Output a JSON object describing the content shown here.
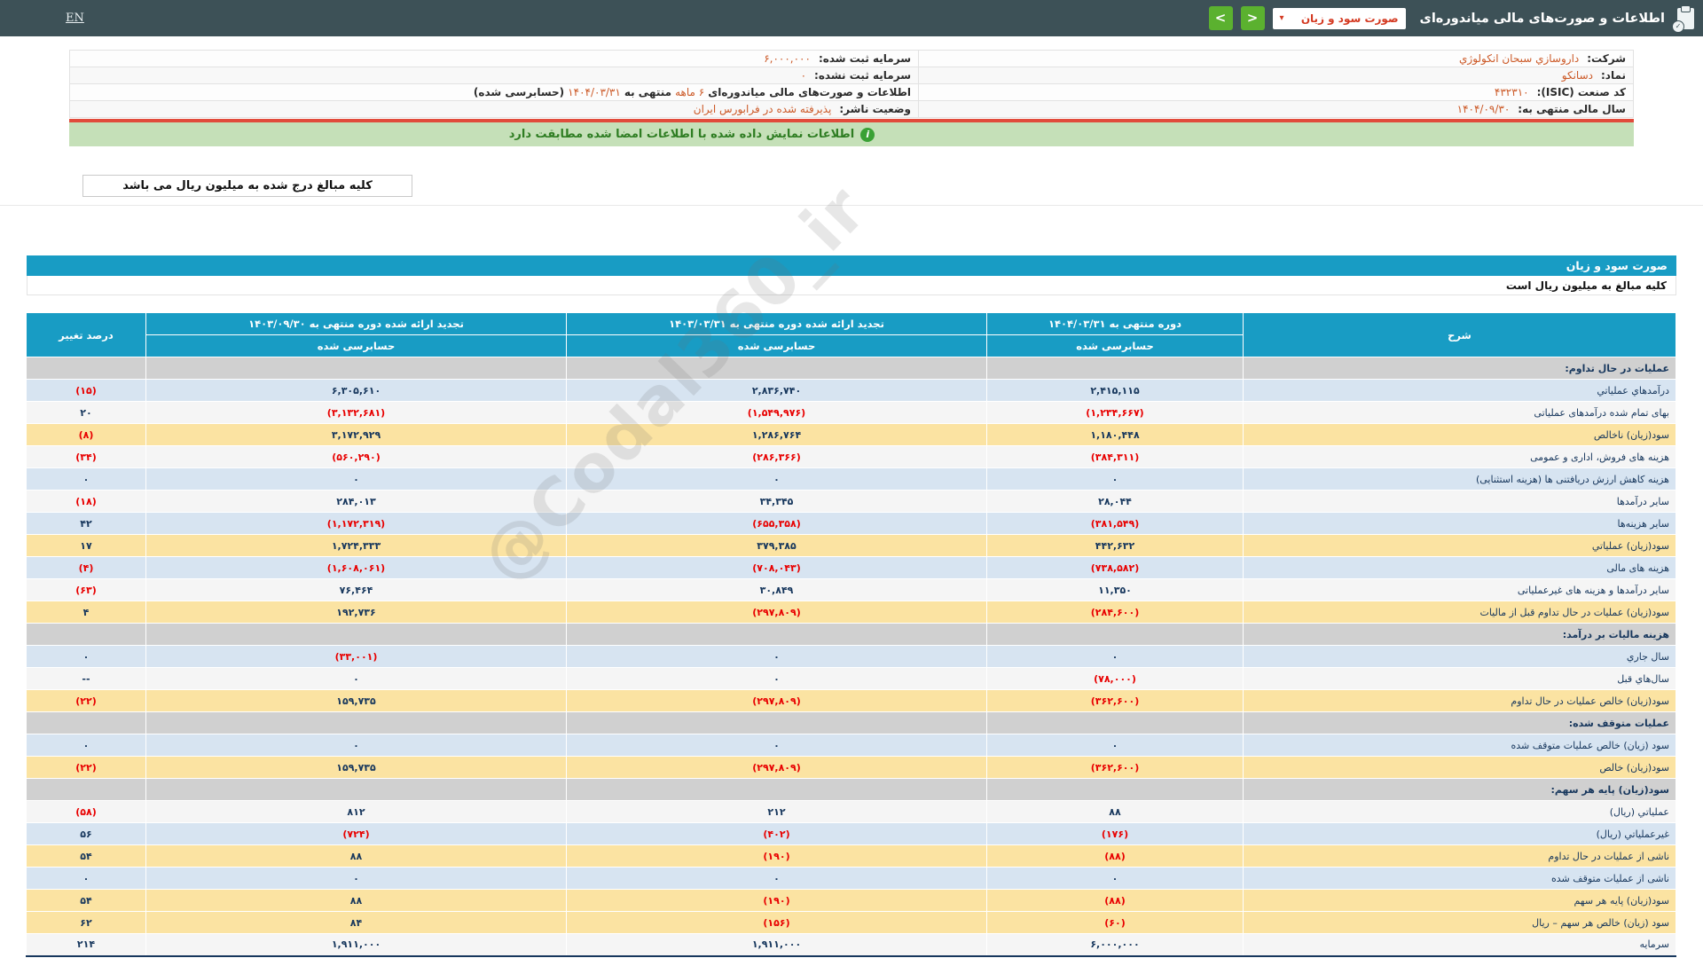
{
  "topbar": {
    "title": "اطلاعات و صورت‌های مالی میاندوره‌ای",
    "dropdown_value": "صورت سود و زیان",
    "lang_link": "EN",
    "icons": {
      "dropdown_caret": "▾",
      "next": ">",
      "prev": "<"
    }
  },
  "info": {
    "company_label": "شرکت:",
    "company_value": "داروسازي سبحان انکولوژي",
    "symbol_label": "نماد:",
    "symbol_value": "دسانکو",
    "isic_label": "کد صنعت (ISIC):",
    "isic_value": "۴۳۲۳۱۰",
    "fiscal_label": "سال مالی منتهی به:",
    "fiscal_value": "۱۴۰۴/۰۹/۳۰",
    "registered_capital_label": "سرمایه ثبت شده:",
    "registered_capital_value": "۶,۰۰۰,۰۰۰",
    "unregistered_capital_label": "سرمایه ثبت نشده:",
    "unregistered_capital_value": "۰",
    "period_prefix": "اطلاعات و صورت‌های مالی میاندوره‌ای",
    "period_months": "۶ ماهه",
    "period_mid": "منتهی به",
    "period_date": "۱۴۰۴/۰۳/۳۱",
    "period_suffix": "(حسابرسی شده)",
    "status_label": "وضعیت ناشر:",
    "status_value": "پذیرفته شده در فرابورس ایران"
  },
  "banner": {
    "text": "اطلاعات نمایش داده شده با اطلاعات امضا شده مطابقت دارد"
  },
  "amounts_note": "کلیه مبالغ درج شده به میلیون ریال می باشد",
  "statement": {
    "title": "صورت سود و زیان",
    "unit_note": "کلیه مبالغ به میلیون ریال است"
  },
  "table": {
    "headers": {
      "description": "شرح",
      "col1": "دوره منتهی به ۱۴۰۴/۰۳/۳۱",
      "col2": "تجدید ارائه شده دوره منتهی به ۱۴۰۳/۰۳/۳۱",
      "col3": "تجدید ارائه شده دوره منتهی به ۱۴۰۳/۰۹/۳۰",
      "pct": "درصد تغییر",
      "audited": "حسابرسی شده"
    },
    "rows": [
      {
        "label": "عملیات در حال تداوم:",
        "bg": "section"
      },
      {
        "label": "درآمدهاي عملیاتي",
        "bg": "blue",
        "v1": "۲,۴۱۵,۱۱۵",
        "v2": "۲,۸۳۶,۷۴۰",
        "v3": "۶,۳۰۵,۶۱۰",
        "pct": "(۱۵)"
      },
      {
        "label": "بهای تمام شده درآمدهای عملیاتی",
        "bg": "white",
        "v1": "(۱,۲۳۴,۶۶۷)",
        "v2": "(۱,۵۴۹,۹۷۶)",
        "v3": "(۳,۱۳۲,۶۸۱)",
        "pct": "۲۰"
      },
      {
        "label": "سود(زیان) ناخالص",
        "bg": "yellow",
        "v1": "۱,۱۸۰,۴۴۸",
        "v2": "۱,۲۸۶,۷۶۴",
        "v3": "۳,۱۷۲,۹۲۹",
        "pct": "(۸)"
      },
      {
        "label": "هزینه های فروش، اداری و عمومی",
        "bg": "white",
        "v1": "(۳۸۴,۳۱۱)",
        "v2": "(۲۸۶,۳۶۶)",
        "v3": "(۵۶۰,۲۹۰)",
        "pct": "(۳۴)"
      },
      {
        "label": "هزینه کاهش ارزش دریافتنی ها (هزینه استثنایی)",
        "bg": "blue",
        "v1": "۰",
        "v2": "۰",
        "v3": "۰",
        "pct": "۰"
      },
      {
        "label": "سایر درآمدها",
        "bg": "white",
        "v1": "۲۸,۰۴۴",
        "v2": "۳۴,۳۴۵",
        "v3": "۲۸۴,۰۱۳",
        "pct": "(۱۸)"
      },
      {
        "label": "سایر هزینه‌ها",
        "bg": "blue",
        "v1": "(۳۸۱,۵۴۹)",
        "v2": "(۶۵۵,۳۵۸)",
        "v3": "(۱,۱۷۲,۳۱۹)",
        "pct": "۴۲"
      },
      {
        "label": "سود(زیان) عملیاتي",
        "bg": "yellow",
        "v1": "۴۴۲,۶۳۲",
        "v2": "۳۷۹,۳۸۵",
        "v3": "۱,۷۲۴,۳۳۳",
        "pct": "۱۷"
      },
      {
        "label": "هزینه های مالی",
        "bg": "blue",
        "v1": "(۷۳۸,۵۸۲)",
        "v2": "(۷۰۸,۰۴۳)",
        "v3": "(۱,۶۰۸,۰۶۱)",
        "pct": "(۴)"
      },
      {
        "label": "سایر درآمدها و هزینه های غیرعملیاتی",
        "bg": "white",
        "v1": "۱۱,۳۵۰",
        "v2": "۳۰,۸۴۹",
        "v3": "۷۶,۴۶۴",
        "pct": "(۶۳)"
      },
      {
        "label": "سود(زیان) عملیات در حال تداوم قبل از مالیات",
        "bg": "yellow",
        "v1": "(۲۸۴,۶۰۰)",
        "v2": "(۲۹۷,۸۰۹)",
        "v3": "۱۹۲,۷۳۶",
        "pct": "۴"
      },
      {
        "label": "هزینه مالیات بر درآمد:",
        "bg": "section"
      },
      {
        "label": "سال جاري",
        "bg": "blue",
        "v1": "۰",
        "v2": "۰",
        "v3": "(۳۳,۰۰۱)",
        "pct": "۰"
      },
      {
        "label": "سال‌هاي قبل",
        "bg": "white",
        "v1": "(۷۸,۰۰۰)",
        "v2": "۰",
        "v3": "۰",
        "pct": "--"
      },
      {
        "label": "سود(زیان) خالص عملیات در حال تداوم",
        "bg": "yellow",
        "v1": "(۳۶۲,۶۰۰)",
        "v2": "(۲۹۷,۸۰۹)",
        "v3": "۱۵۹,۷۳۵",
        "pct": "(۲۲)"
      },
      {
        "label": "عملیات متوقف شده:",
        "bg": "section"
      },
      {
        "label": "سود (زیان) خالص عملیات متوقف شده",
        "bg": "blue",
        "v1": "۰",
        "v2": "۰",
        "v3": "۰",
        "pct": "۰"
      },
      {
        "label": "سود(زیان) خالص",
        "bg": "yellow",
        "v1": "(۳۶۲,۶۰۰)",
        "v2": "(۲۹۷,۸۰۹)",
        "v3": "۱۵۹,۷۳۵",
        "pct": "(۲۲)"
      },
      {
        "label": "سود(زیان) پایه هر سهم:",
        "bg": "section"
      },
      {
        "label": "عملیاتي (ریال)",
        "bg": "white",
        "v1": "۸۸",
        "v2": "۲۱۲",
        "v3": "۸۱۲",
        "pct": "(۵۸)"
      },
      {
        "label": "غیرعملیاتي (ریال)",
        "bg": "blue",
        "v1": "(۱۷۶)",
        "v2": "(۴۰۲)",
        "v3": "(۷۲۴)",
        "pct": "۵۶"
      },
      {
        "label": "ناشی از عملیات در حال تداوم",
        "bg": "yellow",
        "v1": "(۸۸)",
        "v2": "(۱۹۰)",
        "v3": "۸۸",
        "pct": "۵۴"
      },
      {
        "label": "ناشی از عملیات متوقف شده",
        "bg": "blue",
        "v1": "۰",
        "v2": "۰",
        "v3": "۰",
        "pct": "۰"
      },
      {
        "label": "سود(زیان) پایه هر سهم",
        "bg": "yellow",
        "v1": "(۸۸)",
        "v2": "(۱۹۰)",
        "v3": "۸۸",
        "pct": "۵۴"
      },
      {
        "label": "سود (زیان) خالص هر سهم – ریال",
        "bg": "yellow",
        "v1": "(۶۰)",
        "v2": "(۱۵۶)",
        "v3": "۸۴",
        "pct": "۶۲"
      },
      {
        "label": "سرمایه",
        "bg": "white",
        "v1": "۶,۰۰۰,۰۰۰",
        "v2": "۱,۹۱۱,۰۰۰",
        "v3": "۱,۹۱۱,۰۰۰",
        "pct": "۲۱۴"
      }
    ]
  },
  "watermark": "@Codal360_ir",
  "colors": {
    "topbar_bg": "#3d5157",
    "primary_blue": "#189cc4",
    "green_button": "#5bb12f",
    "dropdown_red": "#d43a22",
    "info_value_orange": "#cc5a28",
    "red_line": "#e14b3b",
    "banner_green_bg": "#c5e0b8",
    "banner_green_text": "#2e7d22",
    "row_blue": "#d7e4f1",
    "row_yellow": "#fbe3a2",
    "section_gray": "#d0d0d0",
    "value_navy": "#17375d",
    "negative_red": "#e80000"
  }
}
